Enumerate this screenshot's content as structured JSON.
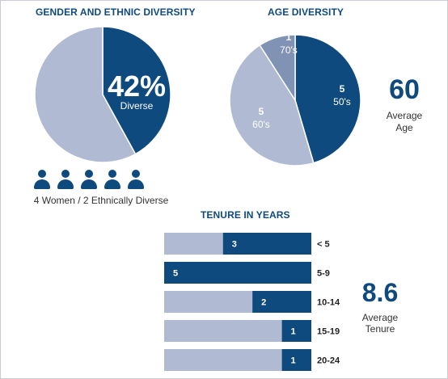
{
  "colors": {
    "dark": "#0e4a7d",
    "light": "#b0bbd3",
    "mid": "#8093b4",
    "text_on_dark": "#ffffff"
  },
  "gender": {
    "title": "GENDER AND ETHNIC DIVERSITY",
    "percent_label": "42%",
    "percent_caption": "Diverse",
    "people_count": 5,
    "caption": "4 Women / 2 Ethnically Diverse"
  },
  "age": {
    "title": "AGE DIVERSITY",
    "average_value": "60",
    "average_label_line1": "Average",
    "average_label_line2": "Age"
  },
  "tenure": {
    "title": "TENURE IN YEARS",
    "average_value": "8.6",
    "average_label_line1": "Average",
    "average_label_line2": "Tenure"
  },
  "chart_data": [
    {
      "type": "pie",
      "slices": [
        {
          "label": "Diverse",
          "value": 42,
          "color": "#0e4a7d"
        },
        {
          "label": "",
          "value": 58,
          "color": "#b0bbd3"
        }
      ]
    },
    {
      "type": "pie",
      "slices": [
        {
          "count": "5",
          "label": "50's",
          "value": 5,
          "color": "#0e4a7d"
        },
        {
          "count": "5",
          "label": "60's",
          "value": 5,
          "color": "#b0bbd3"
        },
        {
          "count": "1",
          "label": "70's",
          "value": 1,
          "color": "#8093b4"
        }
      ]
    },
    {
      "type": "bar",
      "orientation": "horizontal",
      "stacked": true,
      "categories": [
        "< 5",
        "5-9",
        "10-14",
        "15-19",
        "20-24"
      ],
      "values": [
        3,
        5,
        2,
        1,
        1
      ],
      "max": 5
    }
  ]
}
